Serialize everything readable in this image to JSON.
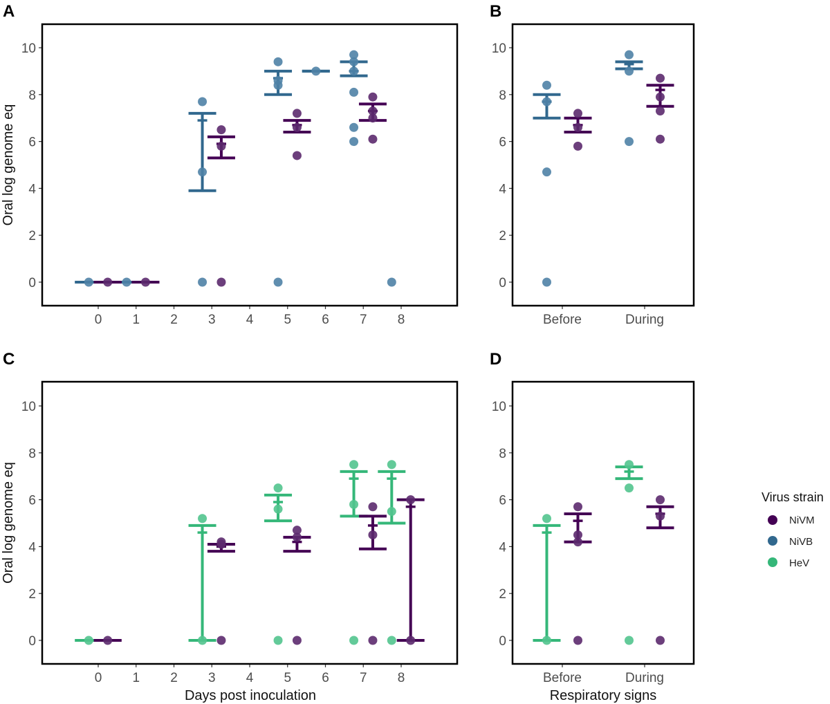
{
  "figure": {
    "legend": {
      "title": "Virus strain",
      "entries": [
        {
          "name": "NiVM",
          "color": "#440154"
        },
        {
          "name": "NiVB",
          "color": "#31688e"
        },
        {
          "name": "HeV",
          "color": "#35b779"
        }
      ]
    }
  },
  "chart_data": [
    {
      "panel": "A",
      "type": "scatter",
      "title": "",
      "xlabel": "",
      "ylabel": "Oral log genome eq",
      "x_ticks": [
        "0",
        "1",
        "2",
        "3",
        "4",
        "5",
        "6",
        "7",
        "8"
      ],
      "y_ticks": [
        "0",
        "2",
        "4",
        "6",
        "8",
        "10"
      ],
      "xlim": [
        -1.5,
        9.5
      ],
      "ylim": [
        -1,
        11
      ],
      "grid": false,
      "series": [
        {
          "name": "NiVB",
          "points": [
            {
              "x": 0,
              "y": [
                0
              ]
            },
            {
              "x": 1,
              "y": [
                0
              ]
            },
            {
              "x": 3,
              "y": [
                0,
                4.7,
                7.7
              ]
            },
            {
              "x": 5,
              "y": [
                0,
                8.4,
                8.6,
                9.4
              ]
            },
            {
              "x": 6,
              "y": [
                9.0
              ]
            },
            {
              "x": 7,
              "y": [
                6.0,
                6.6,
                8.1,
                9.0,
                9.4,
                9.7
              ]
            },
            {
              "x": 8,
              "y": [
                0
              ]
            }
          ],
          "summary": [
            {
              "x": 0,
              "mean": 0,
              "lower": 0,
              "upper": 0
            },
            {
              "x": 1,
              "mean": 0,
              "lower": 0,
              "upper": 0
            },
            {
              "x": 3,
              "mean": 6.9,
              "lower": 3.9,
              "upper": 7.2
            },
            {
              "x": 5,
              "mean": 8.7,
              "lower": 8.0,
              "upper": 9.0
            },
            {
              "x": 6,
              "mean": 9.0,
              "lower": 9.0,
              "upper": 9.0
            },
            {
              "x": 7,
              "mean": 9.0,
              "lower": 8.8,
              "upper": 9.4
            }
          ]
        },
        {
          "name": "NiVM",
          "points": [
            {
              "x": 0,
              "y": [
                0
              ]
            },
            {
              "x": 1,
              "y": [
                0
              ]
            },
            {
              "x": 3,
              "y": [
                0,
                5.8,
                6.5
              ]
            },
            {
              "x": 5,
              "y": [
                5.4,
                6.6,
                7.2
              ]
            },
            {
              "x": 7,
              "y": [
                6.1,
                7.0,
                7.3,
                7.9
              ]
            }
          ],
          "summary": [
            {
              "x": 0,
              "mean": 0,
              "lower": 0,
              "upper": 0
            },
            {
              "x": 1,
              "mean": 0,
              "lower": 0,
              "upper": 0
            },
            {
              "x": 3,
              "mean": 5.9,
              "lower": 5.3,
              "upper": 6.2
            },
            {
              "x": 5,
              "mean": 6.7,
              "lower": 6.4,
              "upper": 6.9
            },
            {
              "x": 7,
              "mean": 7.3,
              "lower": 6.9,
              "upper": 7.6
            }
          ]
        }
      ]
    },
    {
      "panel": "B",
      "type": "scatter",
      "xlabel": "",
      "ylabel": "",
      "categories": [
        "Before",
        "During"
      ],
      "y_ticks": [
        "0",
        "2",
        "4",
        "6",
        "8",
        "10"
      ],
      "ylim": [
        -1,
        11
      ],
      "grid": false,
      "series": [
        {
          "name": "NiVB",
          "points": [
            {
              "category": "Before",
              "y": [
                0,
                4.7,
                7.7,
                8.4
              ]
            },
            {
              "category": "During",
              "y": [
                6.0,
                9.0,
                9.7
              ]
            }
          ],
          "summary": [
            {
              "category": "Before",
              "mean": 7.7,
              "lower": 7.0,
              "upper": 8.0
            },
            {
              "category": "During",
              "mean": 9.3,
              "lower": 9.1,
              "upper": 9.4
            }
          ]
        },
        {
          "name": "NiVM",
          "points": [
            {
              "category": "Before",
              "y": [
                5.8,
                6.6,
                7.2
              ]
            },
            {
              "category": "During",
              "y": [
                6.1,
                7.3,
                7.9,
                8.7
              ]
            }
          ],
          "summary": [
            {
              "category": "Before",
              "mean": 6.7,
              "lower": 6.4,
              "upper": 7.0
            },
            {
              "category": "During",
              "mean": 8.2,
              "lower": 7.5,
              "upper": 8.4
            }
          ]
        }
      ]
    },
    {
      "panel": "C",
      "type": "scatter",
      "xlabel": "Days post inoculation",
      "ylabel": "Oral log genome eq",
      "x_ticks": [
        "0",
        "1",
        "2",
        "3",
        "4",
        "5",
        "6",
        "7",
        "8"
      ],
      "y_ticks": [
        "0",
        "2",
        "4",
        "6",
        "8",
        "10"
      ],
      "xlim": [
        -1.5,
        9.5
      ],
      "ylim": [
        -1,
        11
      ],
      "grid": false,
      "series": [
        {
          "name": "HeV",
          "points": [
            {
              "x": 0,
              "y": [
                0
              ]
            },
            {
              "x": 3,
              "y": [
                0,
                5.2
              ]
            },
            {
              "x": 5,
              "y": [
                0,
                5.6,
                6.5
              ]
            },
            {
              "x": 7,
              "y": [
                0,
                5.8,
                7.5
              ]
            },
            {
              "x": 8,
              "y": [
                0,
                5.5,
                7.5
              ]
            }
          ],
          "summary": [
            {
              "x": 0,
              "mean": 0,
              "lower": 0,
              "upper": 0
            },
            {
              "x": 3,
              "mean": 4.6,
              "lower": 0,
              "upper": 4.9
            },
            {
              "x": 5,
              "mean": 5.9,
              "lower": 5.1,
              "upper": 6.2
            },
            {
              "x": 7,
              "mean": 6.9,
              "lower": 5.3,
              "upper": 7.2
            },
            {
              "x": 8,
              "mean": 6.9,
              "lower": 5.0,
              "upper": 7.2
            }
          ]
        },
        {
          "name": "NiVM",
          "points": [
            {
              "x": 0,
              "y": [
                0
              ]
            },
            {
              "x": 3,
              "y": [
                0,
                4.1,
                4.2
              ]
            },
            {
              "x": 5,
              "y": [
                0,
                4.4,
                4.7
              ]
            },
            {
              "x": 7,
              "y": [
                0,
                4.5,
                5.7
              ]
            },
            {
              "x": 8,
              "y": [
                0,
                6.0
              ]
            }
          ],
          "summary": [
            {
              "x": 0,
              "mean": 0,
              "lower": 0,
              "upper": 0
            },
            {
              "x": 3,
              "mean": 4.0,
              "lower": 3.8,
              "upper": 4.1
            },
            {
              "x": 5,
              "mean": 4.2,
              "lower": 3.8,
              "upper": 4.4
            },
            {
              "x": 7,
              "mean": 4.9,
              "lower": 3.9,
              "upper": 5.3
            },
            {
              "x": 8,
              "mean": 5.7,
              "lower": 0,
              "upper": 6.0
            }
          ]
        }
      ]
    },
    {
      "panel": "D",
      "type": "scatter",
      "xlabel": "Respiratory signs",
      "ylabel": "",
      "categories": [
        "Before",
        "During"
      ],
      "y_ticks": [
        "0",
        "2",
        "4",
        "6",
        "8",
        "10"
      ],
      "ylim": [
        -1,
        11
      ],
      "grid": false,
      "series": [
        {
          "name": "HeV",
          "points": [
            {
              "category": "Before",
              "y": [
                0,
                5.2
              ]
            },
            {
              "category": "During",
              "y": [
                0,
                6.5,
                7.5
              ]
            }
          ],
          "summary": [
            {
              "category": "Before",
              "mean": 4.6,
              "lower": 0,
              "upper": 4.9
            },
            {
              "category": "During",
              "mean": 7.2,
              "lower": 6.9,
              "upper": 7.4
            }
          ]
        },
        {
          "name": "NiVM",
          "points": [
            {
              "category": "Before",
              "y": [
                0,
                4.2,
                4.5,
                5.7
              ]
            },
            {
              "category": "During",
              "y": [
                0,
                5.3,
                6.0
              ]
            }
          ],
          "summary": [
            {
              "category": "Before",
              "mean": 5.1,
              "lower": 4.2,
              "upper": 5.4
            },
            {
              "category": "During",
              "mean": 5.4,
              "lower": 4.8,
              "upper": 5.7
            }
          ]
        }
      ]
    }
  ]
}
